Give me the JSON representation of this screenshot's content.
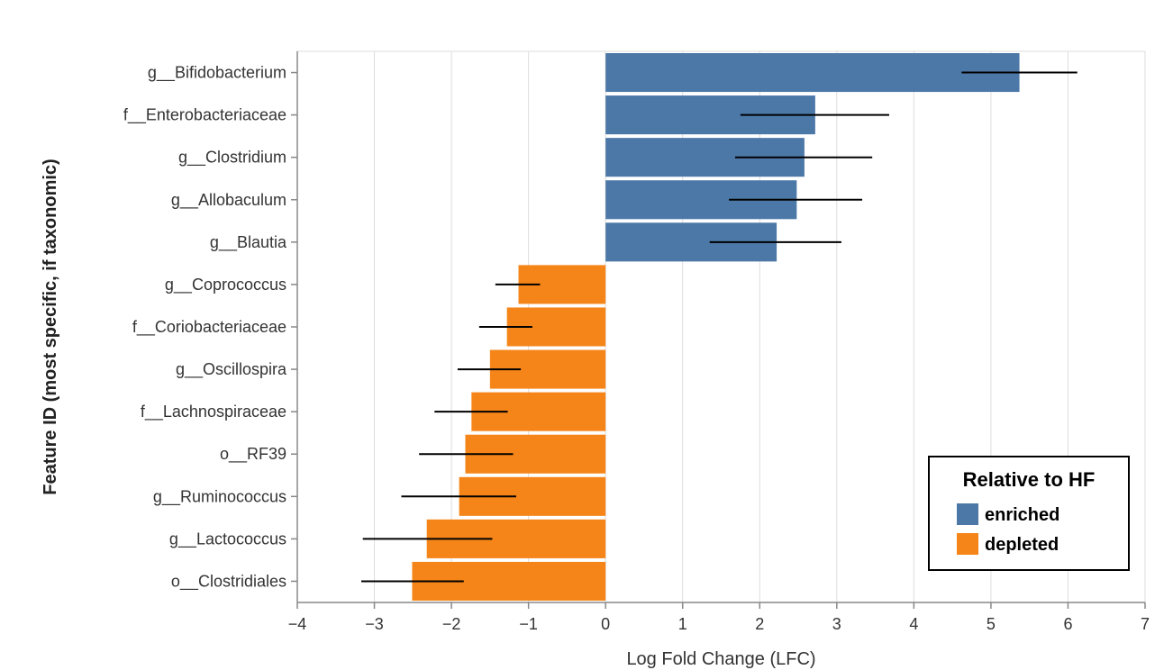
{
  "chart_data": {
    "type": "bar",
    "orientation": "horizontal",
    "xlabel": "Log Fold Change (LFC)",
    "ylabel": "Feature ID (most specific, if taxonomic)",
    "xlim": [
      -4,
      7
    ],
    "xticks": [
      -4,
      -3,
      -2,
      -1,
      0,
      1,
      2,
      3,
      4,
      5,
      6,
      7
    ],
    "grid": true,
    "legend": {
      "title": "Relative to HF",
      "position": "bottom-right",
      "items": [
        {
          "label": "enriched",
          "color": "#4c78a8"
        },
        {
          "label": "depleted",
          "color": "#f58518"
        }
      ]
    },
    "categories": [
      "g__Bifidobacterium",
      "f__Enterobacteriaceae",
      "g__Clostridium",
      "g__Allobaculum",
      "g__Blautia",
      "g__Coprococcus",
      "f__Coriobacteriaceae",
      "g__Oscillospira",
      "f__Lachnospiraceae",
      "o__RF39",
      "g__Ruminococcus",
      "g__Lactococcus",
      "o__Clostridiales"
    ],
    "values": [
      5.37,
      2.72,
      2.58,
      2.48,
      2.22,
      -1.13,
      -1.28,
      -1.5,
      -1.74,
      -1.82,
      -1.9,
      -2.32,
      -2.51
    ],
    "error_low": [
      4.62,
      1.75,
      1.68,
      1.6,
      1.35,
      -1.43,
      -1.64,
      -1.92,
      -2.22,
      -2.42,
      -2.65,
      -3.15,
      -3.17
    ],
    "error_high": [
      6.12,
      3.68,
      3.46,
      3.33,
      3.06,
      -0.85,
      -0.95,
      -1.1,
      -1.27,
      -1.2,
      -1.16,
      -1.47,
      -1.84
    ],
    "groups": [
      "enriched",
      "enriched",
      "enriched",
      "enriched",
      "enriched",
      "depleted",
      "depleted",
      "depleted",
      "depleted",
      "depleted",
      "depleted",
      "depleted",
      "depleted"
    ]
  }
}
